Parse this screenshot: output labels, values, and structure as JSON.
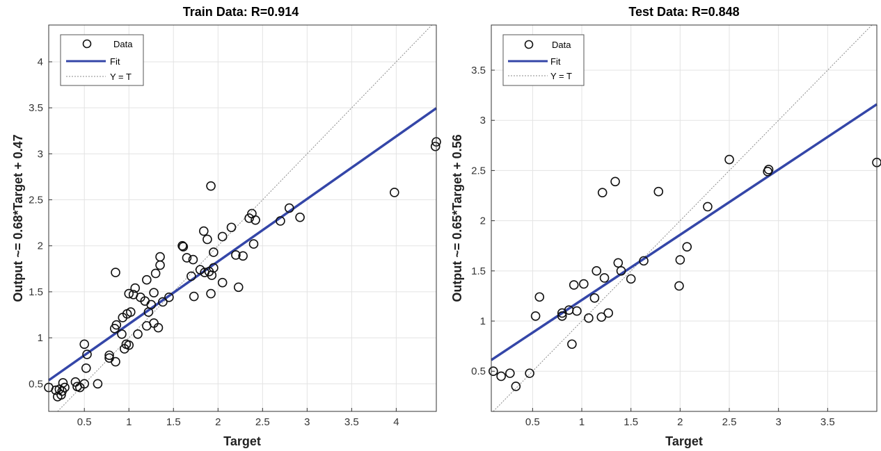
{
  "chart_data": [
    {
      "type": "scatter",
      "title": "Train Data: R=0.914",
      "xlabel": "Target",
      "ylabel": "Output ~= 0.68*Target + 0.47",
      "xlim": [
        0.1,
        4.45
      ],
      "ylim": [
        0.2,
        4.4
      ],
      "xticks": [
        0.5,
        1,
        1.5,
        2,
        2.5,
        3,
        3.5,
        4
      ],
      "xtick_labels": [
        "0.5",
        "1",
        "1.5",
        "2",
        "2.5",
        "3",
        "3.5",
        "4"
      ],
      "yticks": [
        0.5,
        1,
        1.5,
        2,
        2.5,
        3,
        3.5,
        4
      ],
      "ytick_labels": [
        "0.5",
        "1",
        "1.5",
        "2",
        "2.5",
        "3",
        "3.5",
        "4"
      ],
      "grid": true,
      "legend_position": "top-left",
      "legend": [
        "Data",
        "Fit",
        "Y = T"
      ],
      "fit": {
        "slope": 0.68,
        "intercept": 0.47
      },
      "colors": {
        "fit": "#3446a8",
        "data": "#111111",
        "identity": "#8a8a8a"
      },
      "points": [
        [
          0.1,
          0.46
        ],
        [
          0.18,
          0.43
        ],
        [
          0.2,
          0.36
        ],
        [
          0.22,
          0.44
        ],
        [
          0.24,
          0.38
        ],
        [
          0.25,
          0.42
        ],
        [
          0.26,
          0.51
        ],
        [
          0.28,
          0.46
        ],
        [
          0.4,
          0.52
        ],
        [
          0.42,
          0.47
        ],
        [
          0.45,
          0.46
        ],
        [
          0.5,
          0.5
        ],
        [
          0.5,
          0.93
        ],
        [
          0.53,
          0.82
        ],
        [
          0.52,
          0.67
        ],
        [
          0.65,
          0.5
        ],
        [
          0.78,
          0.78
        ],
        [
          0.78,
          0.81
        ],
        [
          0.85,
          0.74
        ],
        [
          0.84,
          1.1
        ],
        [
          0.86,
          1.14
        ],
        [
          0.85,
          1.71
        ],
        [
          0.92,
          1.04
        ],
        [
          0.93,
          1.22
        ],
        [
          0.95,
          0.88
        ],
        [
          0.97,
          0.93
        ],
        [
          1.0,
          0.92
        ],
        [
          0.98,
          1.26
        ],
        [
          1.0,
          1.48
        ],
        [
          1.02,
          1.28
        ],
        [
          1.05,
          1.47
        ],
        [
          1.07,
          1.54
        ],
        [
          1.1,
          1.04
        ],
        [
          1.13,
          1.44
        ],
        [
          1.18,
          1.4
        ],
        [
          1.2,
          1.63
        ],
        [
          1.2,
          1.13
        ],
        [
          1.22,
          1.28
        ],
        [
          1.25,
          1.36
        ],
        [
          1.28,
          1.49
        ],
        [
          1.28,
          1.16
        ],
        [
          1.3,
          1.7
        ],
        [
          1.33,
          1.11
        ],
        [
          1.35,
          1.88
        ],
        [
          1.35,
          1.79
        ],
        [
          1.38,
          1.39
        ],
        [
          1.45,
          1.44
        ],
        [
          1.6,
          2.0
        ],
        [
          1.61,
          1.99
        ],
        [
          1.65,
          1.87
        ],
        [
          1.7,
          1.67
        ],
        [
          1.72,
          1.85
        ],
        [
          1.73,
          1.45
        ],
        [
          1.8,
          1.74
        ],
        [
          1.84,
          2.16
        ],
        [
          1.85,
          1.71
        ],
        [
          1.88,
          2.07
        ],
        [
          1.9,
          1.72
        ],
        [
          1.92,
          1.48
        ],
        [
          1.93,
          1.68
        ],
        [
          1.95,
          1.76
        ],
        [
          1.95,
          1.93
        ],
        [
          1.92,
          2.65
        ],
        [
          2.05,
          2.1
        ],
        [
          2.05,
          1.6
        ],
        [
          2.15,
          2.2
        ],
        [
          2.2,
          1.9
        ],
        [
          2.23,
          1.55
        ],
        [
          2.28,
          1.89
        ],
        [
          2.35,
          2.3
        ],
        [
          2.38,
          2.35
        ],
        [
          2.4,
          2.02
        ],
        [
          2.42,
          2.28
        ],
        [
          2.7,
          2.27
        ],
        [
          2.8,
          2.41
        ],
        [
          2.92,
          2.31
        ],
        [
          3.98,
          2.58
        ],
        [
          4.44,
          3.08
        ],
        [
          4.45,
          3.13
        ]
      ]
    },
    {
      "type": "scatter",
      "title": "Test Data: R=0.848",
      "xlabel": "Target",
      "ylabel": "Output ~= 0.65*Target + 0.56",
      "xlim": [
        0.08,
        4.0
      ],
      "ylim": [
        0.1,
        3.95
      ],
      "xticks": [
        0.5,
        1,
        1.5,
        2,
        2.5,
        3,
        3.5
      ],
      "xtick_labels": [
        "0.5",
        "1",
        "1.5",
        "2",
        "2.5",
        "3",
        "3.5"
      ],
      "yticks": [
        0.5,
        1,
        1.5,
        2,
        2.5,
        3,
        3.5
      ],
      "ytick_labels": [
        "0.5",
        "1",
        "1.5",
        "2",
        "2.5",
        "3",
        "3.5"
      ],
      "grid": true,
      "legend_position": "top-left",
      "legend": [
        "Data",
        "Fit",
        "Y = T"
      ],
      "fit": {
        "slope": 0.65,
        "intercept": 0.56
      },
      "colors": {
        "fit": "#3446a8",
        "data": "#111111",
        "identity": "#8a8a8a"
      },
      "points": [
        [
          0.1,
          0.5
        ],
        [
          0.18,
          0.45
        ],
        [
          0.27,
          0.48
        ],
        [
          0.33,
          0.35
        ],
        [
          0.47,
          0.48
        ],
        [
          0.53,
          1.05
        ],
        [
          0.57,
          1.24
        ],
        [
          0.8,
          1.05
        ],
        [
          0.8,
          1.08
        ],
        [
          0.87,
          1.11
        ],
        [
          0.9,
          0.77
        ],
        [
          0.92,
          1.36
        ],
        [
          0.95,
          1.1
        ],
        [
          1.02,
          1.37
        ],
        [
          1.07,
          1.03
        ],
        [
          1.13,
          1.23
        ],
        [
          1.15,
          1.5
        ],
        [
          1.2,
          1.04
        ],
        [
          1.21,
          2.28
        ],
        [
          1.23,
          1.43
        ],
        [
          1.27,
          1.08
        ],
        [
          1.34,
          2.39
        ],
        [
          1.37,
          1.58
        ],
        [
          1.4,
          1.5
        ],
        [
          1.5,
          1.42
        ],
        [
          1.63,
          1.6
        ],
        [
          1.78,
          2.29
        ],
        [
          1.99,
          1.35
        ],
        [
          2.0,
          1.61
        ],
        [
          2.07,
          1.74
        ],
        [
          2.28,
          2.14
        ],
        [
          2.5,
          2.61
        ],
        [
          2.89,
          2.49
        ],
        [
          2.9,
          2.51
        ],
        [
          4.0,
          2.58
        ]
      ]
    }
  ]
}
